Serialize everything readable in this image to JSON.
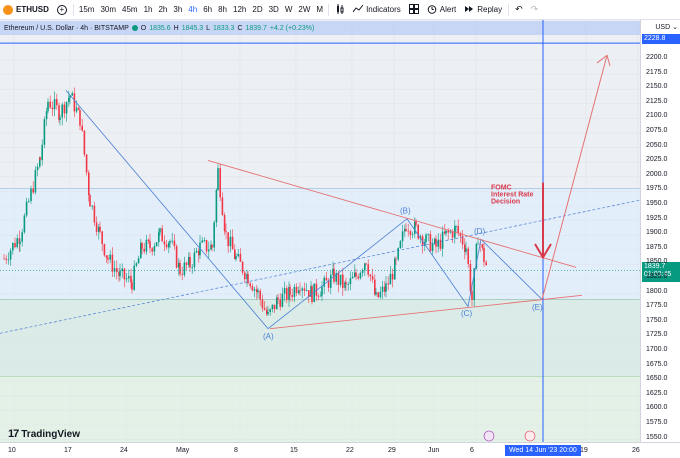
{
  "toolbar": {
    "symbol": "ETHUSD",
    "timeframes": [
      "15m",
      "30m",
      "45m",
      "1h",
      "2h",
      "3h",
      "4h",
      "6h",
      "8h",
      "12h",
      "2D",
      "3D",
      "W",
      "2W",
      "M"
    ],
    "active_timeframe": "4h",
    "indicators_label": "Indicators",
    "alert_label": "Alert",
    "replay_label": "Replay"
  },
  "legend": {
    "title": "Ethereum / U.S. Dollar · 4h · BITSTAMP",
    "o_label": "O",
    "o": "1835.6",
    "h_label": "H",
    "h": "1845.3",
    "l_label": "L",
    "l": "1833.3",
    "c_label": "C",
    "c": "1839.7",
    "change": "+4.2 (+0.23%)"
  },
  "price_axis": {
    "currency": "USD",
    "labels": [
      "2200.0",
      "2175.0",
      "2150.0",
      "2125.0",
      "2100.0",
      "2075.0",
      "2050.0",
      "2025.0",
      "2000.0",
      "1975.0",
      "1950.0",
      "1925.0",
      "1900.0",
      "1875.0",
      "1850.0",
      "1825.0",
      "1800.0",
      "1775.0",
      "1750.0",
      "1725.0",
      "1700.0",
      "1675.0",
      "1650.0",
      "1625.0",
      "1600.0",
      "1575.0",
      "1550.0"
    ],
    "top_tag": "2228.8",
    "current_price": "1839.7",
    "countdown": "01:03:45"
  },
  "time_axis": {
    "labels": [
      "10",
      "17",
      "24",
      "May",
      "8",
      "15",
      "22",
      "29",
      "Jun",
      "6",
      "19",
      "26"
    ],
    "crosshair_tag": "Wed 14 Jun '23  20:00"
  },
  "annotations": {
    "fomc_line1": "FOMC",
    "fomc_line2": "Interest Rate",
    "fomc_line3": "Decision",
    "wave_a": "(A)",
    "wave_b": "(B)",
    "wave_c": "(C)",
    "wave_d": "(D)",
    "wave_e": "(E)"
  },
  "brand": {
    "name": "TradingView"
  },
  "colors": {
    "up": "#089981",
    "down": "#f23645",
    "accent": "#2962ff",
    "pattern_line": "#e57373",
    "elliott": "#4a7fd4"
  }
}
